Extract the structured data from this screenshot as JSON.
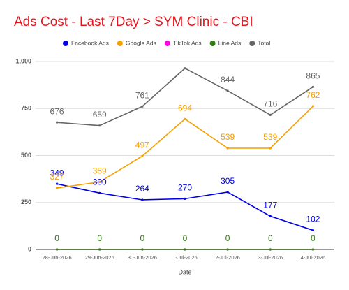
{
  "chart_data": {
    "type": "line",
    "title": "Ads Cost - Last 7Day > SYM Clinic - CBI",
    "x_label": "Date",
    "categories": [
      "28-Jun-2026",
      "29-Jun-2026",
      "30-Jun-2026",
      "1-Jul-2026",
      "2-Jul-2026",
      "3-Jul-2026",
      "4-Jul-2026"
    ],
    "series": [
      {
        "name": "Facebook Ads",
        "color": "#0000e6",
        "values": [
          349,
          300,
          264,
          270,
          305,
          177,
          102
        ],
        "data_labels": true
      },
      {
        "name": "Google Ads",
        "color": "#f5a000",
        "values": [
          327,
          359,
          497,
          694,
          539,
          539,
          762
        ],
        "data_labels": true
      },
      {
        "name": "TikTok Ads",
        "color": "#ff00e6",
        "values": [
          0,
          0,
          0,
          0,
          0,
          0,
          0
        ],
        "data_labels": false
      },
      {
        "name": "Line Ads",
        "color": "#2e7d10",
        "values": [
          0,
          0,
          0,
          0,
          0,
          0,
          0
        ],
        "data_labels": true
      },
      {
        "name": "Total",
        "color": "#666666",
        "values": [
          676,
          659,
          761,
          964,
          844,
          716,
          865
        ],
        "value_labels": [
          "676",
          "659",
          "761",
          null,
          "844",
          "716",
          "865"
        ],
        "data_labels": true
      }
    ],
    "ylim": [
      0,
      1000
    ],
    "yticks": [
      0,
      250,
      500,
      750,
      {
        "value": 1000,
        "label": "1,000"
      }
    ],
    "grid": true,
    "legend": "top"
  }
}
